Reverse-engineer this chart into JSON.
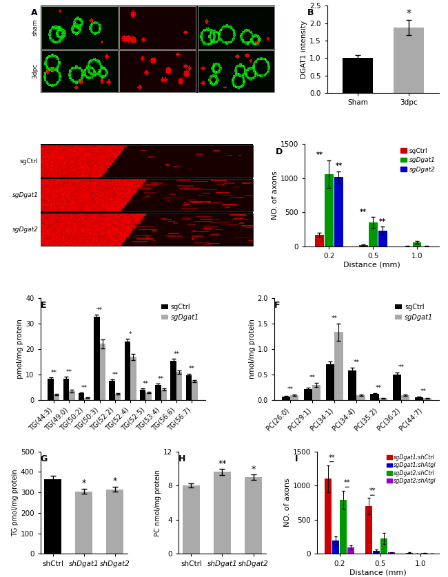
{
  "panel_B": {
    "categories": [
      "Sham",
      "3dpc"
    ],
    "values": [
      1.0,
      1.87
    ],
    "errors": [
      0.08,
      0.22
    ],
    "colors": [
      "#000000",
      "#aaaaaa"
    ],
    "ylabel": "DGAT1 intensity",
    "ylim": [
      0,
      2.5
    ],
    "yticks": [
      0.0,
      0.5,
      1.0,
      1.5,
      2.0,
      2.5
    ],
    "sig": [
      "",
      "*"
    ]
  },
  "panel_D": {
    "distances": [
      "0.2",
      "0.5",
      "1.0"
    ],
    "groups": [
      "sgCtrl",
      "sgDgat1",
      "sgDgat2"
    ],
    "colors": [
      "#cc0000",
      "#009900",
      "#0000cc"
    ],
    "values": [
      [
        175,
        1060,
        1020
      ],
      [
        25,
        350,
        230
      ],
      [
        5,
        60,
        5
      ]
    ],
    "errors": [
      [
        30,
        200,
        80
      ],
      [
        10,
        80,
        60
      ],
      [
        3,
        20,
        3
      ]
    ],
    "ylabel": "NO. of axons",
    "ylim": [
      0,
      1500
    ],
    "yticks": [
      0,
      500,
      1000,
      1500
    ]
  },
  "panel_E": {
    "categories": [
      "TG(44:3)",
      "TG(49:0)",
      "TG(50:2)",
      "TG(50:3)",
      "TG(52:2)",
      "TG(52:4)",
      "TG(52:5)",
      "TG(53:4)",
      "TG(56:6)",
      "TG(56:7)"
    ],
    "sgCtrl": [
      8.5,
      8.5,
      2.8,
      32.5,
      7.5,
      23.0,
      4.2,
      6.0,
      15.5,
      9.8
    ],
    "sgDgat1": [
      2.2,
      3.5,
      1.0,
      22.0,
      2.5,
      17.0,
      3.0,
      4.2,
      11.0,
      7.5
    ],
    "sgCtrl_err": [
      0.5,
      0.6,
      0.3,
      0.8,
      0.7,
      0.9,
      0.4,
      0.5,
      0.7,
      0.6
    ],
    "sgDgat1_err": [
      0.3,
      0.5,
      0.15,
      1.8,
      0.3,
      1.2,
      0.35,
      0.4,
      0.6,
      0.5
    ],
    "colors": [
      "#000000",
      "#aaaaaa"
    ],
    "ylabel": "pmol/mg protein",
    "ylim": [
      0,
      40
    ],
    "yticks": [
      0,
      10,
      20,
      30,
      40
    ],
    "sig": [
      "**",
      "**",
      "**",
      "**",
      "**",
      "*",
      "**",
      "**",
      "**",
      "**"
    ]
  },
  "panel_F": {
    "categories": [
      "PC(26:0)",
      "PC(29:1)",
      "PC(34:1)",
      "PC(34:4)",
      "PC(35:2)",
      "PC(36:2)",
      "PC(44:7)"
    ],
    "sgCtrl": [
      0.07,
      0.22,
      0.7,
      0.58,
      0.12,
      0.5,
      0.06
    ],
    "sgDgat1": [
      0.1,
      0.3,
      1.33,
      0.1,
      0.04,
      0.1,
      0.04
    ],
    "sgCtrl_err": [
      0.012,
      0.03,
      0.06,
      0.06,
      0.02,
      0.04,
      0.01
    ],
    "sgDgat1_err": [
      0.015,
      0.04,
      0.17,
      0.015,
      0.008,
      0.015,
      0.008
    ],
    "colors": [
      "#000000",
      "#aaaaaa"
    ],
    "ylabel": "nmol/mg protein",
    "ylim": [
      0,
      2.0
    ],
    "yticks": [
      0.0,
      0.5,
      1.0,
      1.5,
      2.0
    ],
    "sig": [
      "**",
      "**",
      "**",
      "**",
      "**",
      "**",
      "**"
    ]
  },
  "panel_G": {
    "categories": [
      "shCtrl",
      "shDgat1",
      "shDgat2"
    ],
    "values": [
      365,
      305,
      315
    ],
    "errors": [
      18,
      12,
      12
    ],
    "colors": [
      "#000000",
      "#aaaaaa",
      "#aaaaaa"
    ],
    "ylabel": "TG pmol/mg protein",
    "ylim": [
      0,
      500
    ],
    "yticks": [
      0,
      100,
      200,
      300,
      400,
      500
    ],
    "sig": [
      "",
      "*",
      "*"
    ]
  },
  "panel_H": {
    "categories": [
      "shCtrl",
      "shDgat1",
      "shDgat2"
    ],
    "values": [
      8.0,
      9.6,
      9.0
    ],
    "errors": [
      0.25,
      0.35,
      0.3
    ],
    "colors": [
      "#aaaaaa",
      "#aaaaaa",
      "#aaaaaa"
    ],
    "ylabel": "PC nmol/mg protein",
    "ylim": [
      0,
      12
    ],
    "yticks": [
      0,
      4,
      8,
      12
    ],
    "sig": [
      "",
      "**",
      "*"
    ]
  },
  "panel_I": {
    "distances": [
      "0.2",
      "0.5",
      "1.0"
    ],
    "groups": [
      "sgDgat1;shCtrl",
      "sgDgat1;shAtgl",
      "sgDgat2;shCtrl",
      "sgDgat2;shAtgl"
    ],
    "colors": [
      "#cc0000",
      "#0000cc",
      "#009900",
      "#9900cc"
    ],
    "values": [
      [
        1100,
        200,
        790,
        100
      ],
      [
        700,
        50,
        230,
        20
      ],
      [
        15,
        5,
        10,
        5
      ]
    ],
    "errors": [
      [
        200,
        60,
        130,
        30
      ],
      [
        120,
        20,
        80,
        10
      ],
      [
        5,
        3,
        4,
        3
      ]
    ],
    "ylabel": "NO. of axons",
    "ylim": [
      0,
      1500
    ],
    "yticks": [
      0,
      500,
      1000,
      1500
    ]
  },
  "legend_D": {
    "labels": [
      "sgCtrl",
      "sgDgat1",
      "sgDgat2"
    ],
    "colors": [
      "#cc0000",
      "#009900",
      "#0000cc"
    ]
  },
  "legend_I": {
    "labels": [
      "sgDgat1;shCtrl",
      "sgDgat1;shAtgl",
      "sgDgat2;shCtrl",
      "sgDgat2;shAtgl"
    ],
    "colors": [
      "#cc0000",
      "#0000cc",
      "#009900",
      "#9900cc"
    ]
  }
}
